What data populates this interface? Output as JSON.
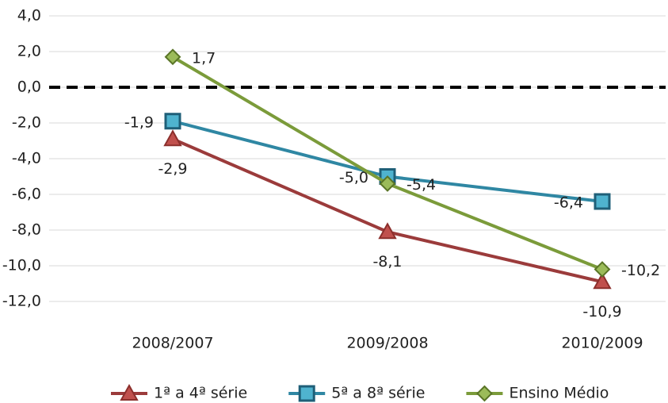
{
  "chart_data": {
    "type": "line",
    "categories": [
      "2008/2007",
      "2009/2008",
      "2010/2009"
    ],
    "series": [
      {
        "name": "1ª a 4ª série",
        "color": "#9b3b3b",
        "marker": "triangle",
        "values": [
          -2.9,
          -8.1,
          -10.9
        ],
        "value_labels": [
          "-2,9",
          "-8,1",
          "-10,9"
        ]
      },
      {
        "name": "5ª a 8ª série",
        "color": "#2f87a3",
        "marker": "square",
        "values": [
          -1.9,
          -5.0,
          -6.4
        ],
        "value_labels": [
          "-1,9",
          "-5,0",
          "-6,4"
        ]
      },
      {
        "name": "Ensino Médio",
        "color": "#7b9b3a",
        "marker": "diamond",
        "values": [
          1.7,
          -5.4,
          -10.2
        ],
        "value_labels": [
          "1,7",
          "-5,4",
          "-10,2"
        ]
      }
    ],
    "ylim": [
      -12,
      4
    ],
    "yticks": [
      {
        "value": -12,
        "label": "-12,0"
      },
      {
        "value": -10,
        "label": "-10,0"
      },
      {
        "value": -8,
        "label": "-8,0"
      },
      {
        "value": -6,
        "label": "-6,0"
      },
      {
        "value": -4,
        "label": "-4,0"
      },
      {
        "value": -2,
        "label": "-2,0"
      },
      {
        "value": 0,
        "label": "0,0"
      },
      {
        "value": 2,
        "label": "2,0"
      },
      {
        "value": 4,
        "label": "4,0"
      }
    ],
    "grid": true,
    "reference_line": {
      "value": 0,
      "style": "dashed"
    },
    "legend": "bottom"
  }
}
